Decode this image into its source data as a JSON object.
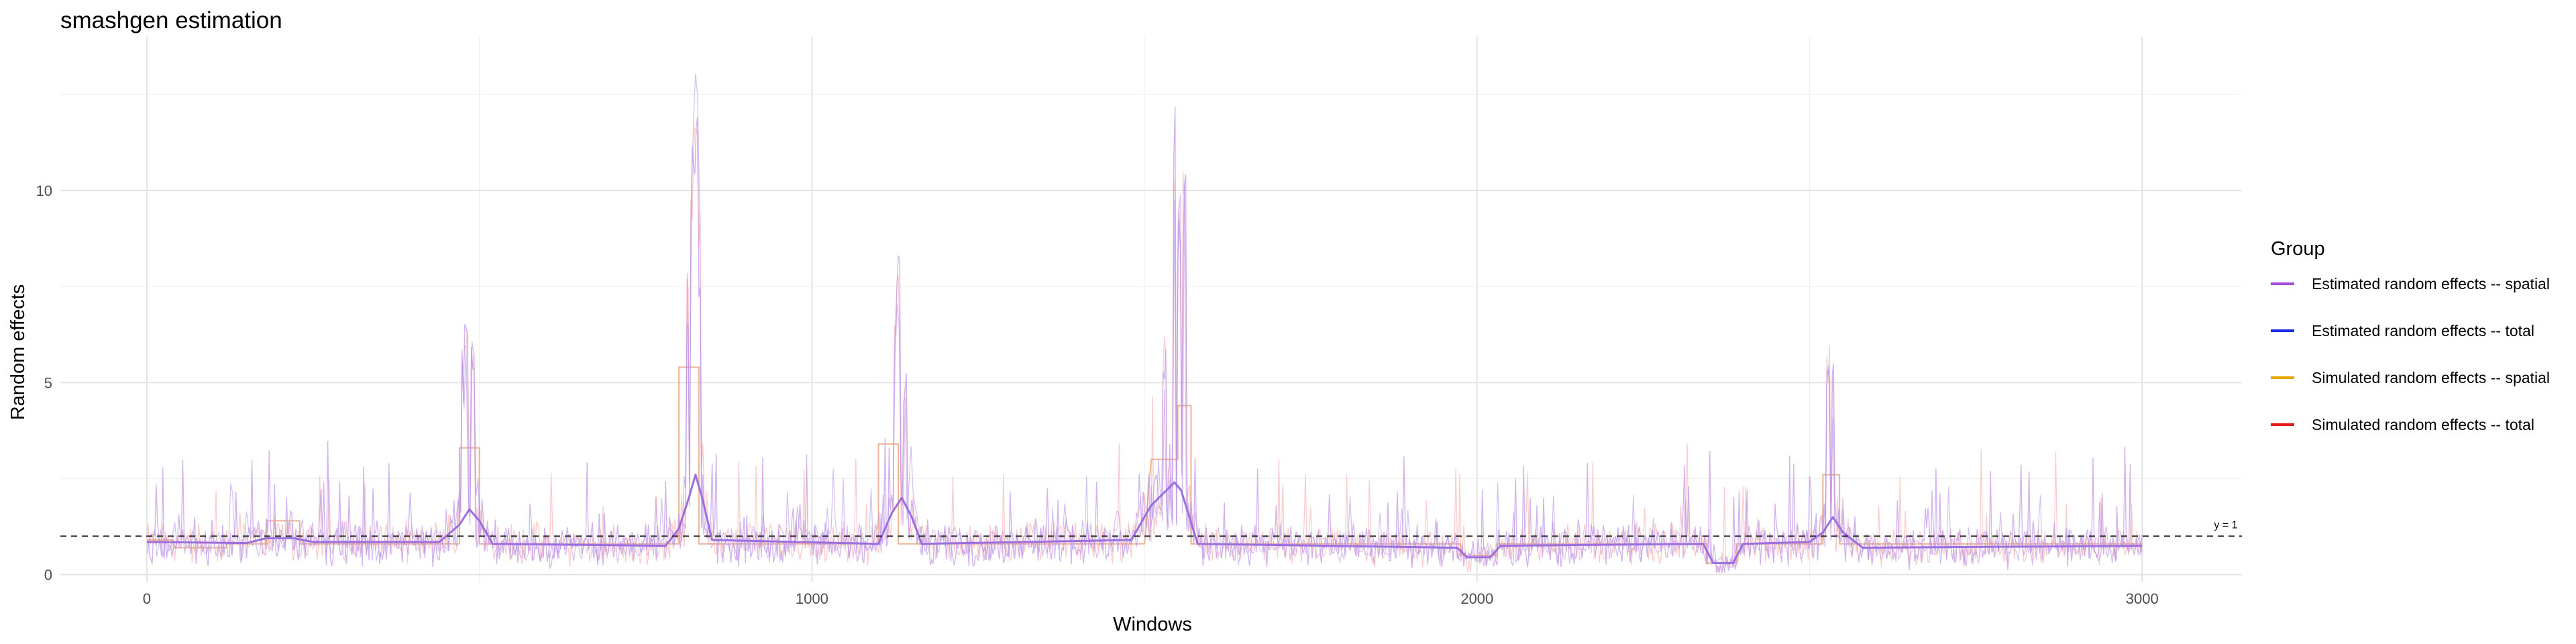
{
  "chart_data": {
    "type": "line",
    "title": "smashgen estimation",
    "xlabel": "Windows",
    "ylabel": "Random effects",
    "xlim": [
      -130,
      3150
    ],
    "ylim": [
      -0.2,
      14.0
    ],
    "x_ticks": [
      0,
      1000,
      2000,
      3000
    ],
    "x_tick_labels": [
      "0",
      "1000",
      "2000",
      "3000"
    ],
    "y_ticks": [
      0,
      5,
      10
    ],
    "y_tick_labels": [
      "0",
      "5",
      "10"
    ],
    "grid": true,
    "legend": {
      "title": "Group",
      "position": "right",
      "entries": [
        {
          "label": "Estimated random effects -- spatial",
          "color": "#a64dd9"
        },
        {
          "label": "Estimated random effects -- total",
          "color": "#1f2be6"
        },
        {
          "label": "Simulated random effects -- spatial",
          "color": "#e6a800"
        },
        {
          "label": "Simulated random effects -- total",
          "color": "#e61a1a"
        }
      ]
    },
    "reference_line": {
      "y": 1,
      "label": "y = 1",
      "style": "dashed"
    },
    "smooth_baseline": [
      [
        0,
        0.85
      ],
      [
        150,
        0.82
      ],
      [
        180,
        0.95
      ],
      [
        220,
        0.95
      ],
      [
        250,
        0.85
      ],
      [
        440,
        0.85
      ],
      [
        470,
        1.3
      ],
      [
        485,
        1.7
      ],
      [
        500,
        1.4
      ],
      [
        520,
        0.8
      ],
      [
        780,
        0.75
      ],
      [
        800,
        1.2
      ],
      [
        815,
        2.0
      ],
      [
        825,
        2.6
      ],
      [
        835,
        2.0
      ],
      [
        850,
        0.9
      ],
      [
        1100,
        0.8
      ],
      [
        1120,
        1.6
      ],
      [
        1135,
        2.0
      ],
      [
        1150,
        1.5
      ],
      [
        1165,
        0.8
      ],
      [
        1480,
        0.9
      ],
      [
        1510,
        1.8
      ],
      [
        1545,
        2.4
      ],
      [
        1555,
        2.2
      ],
      [
        1580,
        0.8
      ],
      [
        1970,
        0.7
      ],
      [
        1985,
        0.45
      ],
      [
        2020,
        0.45
      ],
      [
        2035,
        0.75
      ],
      [
        2340,
        0.8
      ],
      [
        2355,
        0.3
      ],
      [
        2385,
        0.3
      ],
      [
        2400,
        0.8
      ],
      [
        2500,
        0.85
      ],
      [
        2520,
        1.1
      ],
      [
        2535,
        1.5
      ],
      [
        2550,
        1.1
      ],
      [
        2580,
        0.7
      ],
      [
        3000,
        0.75
      ]
    ],
    "simulated_segments": [
      [
        0,
        40,
        0.9
      ],
      [
        40,
        120,
        0.7
      ],
      [
        120,
        180,
        0.8
      ],
      [
        180,
        230,
        1.4
      ],
      [
        230,
        470,
        0.8
      ],
      [
        470,
        500,
        3.3
      ],
      [
        500,
        800,
        0.8
      ],
      [
        800,
        830,
        5.4
      ],
      [
        830,
        1100,
        0.8
      ],
      [
        1100,
        1130,
        3.4
      ],
      [
        1130,
        1500,
        0.8
      ],
      [
        1510,
        1550,
        3.0
      ],
      [
        1550,
        1570,
        4.4
      ],
      [
        1570,
        1975,
        0.8
      ],
      [
        1975,
        2030,
        0.5
      ],
      [
        2030,
        2345,
        0.8
      ],
      [
        2345,
        2390,
        0.3
      ],
      [
        2390,
        2520,
        0.8
      ],
      [
        2520,
        2545,
        2.6
      ],
      [
        2545,
        3000,
        0.8
      ]
    ],
    "peaks": [
      {
        "x": 480,
        "y": 7.4
      },
      {
        "x": 490,
        "y": 6.6
      },
      {
        "x": 475,
        "y": 5.9
      },
      {
        "x": 813,
        "y": 8.1
      },
      {
        "x": 820,
        "y": 11.9
      },
      {
        "x": 826,
        "y": 13.5
      },
      {
        "x": 830,
        "y": 9.6
      },
      {
        "x": 1125,
        "y": 7.2
      },
      {
        "x": 1130,
        "y": 8.3
      },
      {
        "x": 1140,
        "y": 5.5
      },
      {
        "x": 1530,
        "y": 6.5
      },
      {
        "x": 1545,
        "y": 12.7
      },
      {
        "x": 1552,
        "y": 9.8
      },
      {
        "x": 1560,
        "y": 10.8
      },
      {
        "x": 2528,
        "y": 6.0
      },
      {
        "x": 2535,
        "y": 5.4
      }
    ]
  }
}
